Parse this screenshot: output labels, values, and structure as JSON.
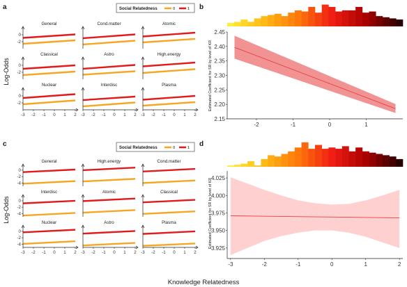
{
  "figure": {
    "xlabel": "Knowledge Relatedness",
    "ylabel_left": "Log-Odds",
    "legend": {
      "title": "Social Relatedness",
      "labels": [
        "0",
        "1"
      ]
    },
    "panel_letters": {
      "a": "a",
      "b": "b",
      "c": "c",
      "d": "d"
    },
    "colors": {
      "sr0": "#F5A623",
      "sr1": "#E31A1C",
      "band": "#F08080",
      "band_light": "#FFC8C8"
    }
  },
  "chart_data": [
    {
      "panel": "a",
      "type": "line",
      "ylabel": "Log-Odds",
      "x_ticks": [
        -3,
        -2,
        -1,
        0,
        1,
        2
      ],
      "y_ticks": [
        0,
        -2
      ],
      "y_tick_labels": [
        "0",
        "-2"
      ],
      "ylim": [
        -4,
        2
      ],
      "series_names": [
        "0",
        "1"
      ],
      "facets": [
        {
          "name": "General",
          "sr0": [
            -2.6,
            -1.6
          ],
          "sr1": [
            -0.9,
            0.1
          ]
        },
        {
          "name": "Cond.matter",
          "sr0": [
            -2.8,
            -1.7
          ],
          "sr1": [
            -1.0,
            0.1
          ]
        },
        {
          "name": "Atomic",
          "sr0": [
            -2.2,
            -1.2
          ],
          "sr1": [
            -0.5,
            0.6
          ]
        },
        {
          "name": "Classical",
          "sr0": [
            -2.8,
            -1.8
          ],
          "sr1": [
            -1.0,
            0.0
          ]
        },
        {
          "name": "Astro",
          "sr0": [
            -2.7,
            -1.7
          ],
          "sr1": [
            -1.0,
            0.1
          ]
        },
        {
          "name": "High.energy",
          "sr0": [
            -2.2,
            -1.1
          ],
          "sr1": [
            -0.3,
            0.8
          ]
        },
        {
          "name": "Nuclear",
          "sr0": [
            -2.4,
            -1.3
          ],
          "sr1": [
            -0.6,
            0.5
          ]
        },
        {
          "name": "Interdisc",
          "sr0": [
            -3.0,
            -1.9
          ],
          "sr1": [
            -1.2,
            -0.2
          ]
        },
        {
          "name": "Plasma",
          "sr0": [
            -2.8,
            -1.8
          ],
          "sr1": [
            -1.1,
            0.0
          ]
        }
      ]
    },
    {
      "panel": "b",
      "type": "line",
      "ylabel": "Estimated Coefficient for SR by level of KR",
      "x": [
        -2.6,
        1.8
      ],
      "y": [
        2.397,
        2.185
      ],
      "ci_lower": [
        2.358,
        2.17
      ],
      "ci_upper": [
        2.437,
        2.201
      ],
      "xlim": [
        -2.8,
        2.0
      ],
      "ylim": [
        2.15,
        2.45
      ],
      "x_ticks": [
        -2,
        -1,
        0,
        1
      ],
      "y_ticks": [
        2.15,
        2.2,
        2.25,
        2.3,
        2.35,
        2.4,
        2.45
      ],
      "y_tick_labels": [
        "2.15",
        "2.20",
        "2.25",
        "2.30",
        "2.35",
        "2.40",
        "2.45"
      ],
      "histogram": [
        0.15,
        0.2,
        0.3,
        0.2,
        0.35,
        0.45,
        0.5,
        0.55,
        0.45,
        0.6,
        0.7,
        0.65,
        0.85,
        0.6,
        0.95,
        0.85,
        0.65,
        0.7,
        0.7,
        0.85,
        0.6,
        0.65,
        0.45,
        0.4,
        0.35,
        0.3
      ]
    },
    {
      "panel": "c",
      "type": "line",
      "ylabel": "Log-Odds",
      "x_ticks": [
        -3,
        -2,
        -1,
        0,
        1,
        2
      ],
      "y_ticks": [
        0,
        -2,
        -4
      ],
      "y_tick_labels": [
        "0",
        "-2",
        "-4"
      ],
      "ylim": [
        -5,
        1.5
      ],
      "series_names": [
        "0",
        "1"
      ],
      "facets": [
        {
          "name": "General",
          "sr0": [
            -4.2,
            -3.4
          ],
          "sr1": [
            -0.6,
            0.2
          ]
        },
        {
          "name": "High.energy",
          "sr0": [
            -3.5,
            -2.7
          ],
          "sr1": [
            0.0,
            0.8
          ]
        },
        {
          "name": "Cond.matter",
          "sr0": [
            -4.0,
            -3.2
          ],
          "sr1": [
            -0.4,
            0.4
          ]
        },
        {
          "name": "Interdisc",
          "sr0": [
            -4.6,
            -3.8
          ],
          "sr1": [
            -0.8,
            0.0
          ]
        },
        {
          "name": "Atomic",
          "sr0": [
            -3.7,
            -2.9
          ],
          "sr1": [
            -0.1,
            0.7
          ]
        },
        {
          "name": "Classical",
          "sr0": [
            -4.1,
            -3.3
          ],
          "sr1": [
            -0.5,
            0.3
          ]
        },
        {
          "name": "Nuclear",
          "sr0": [
            -3.9,
            -3.1
          ],
          "sr1": [
            -0.3,
            0.5
          ]
        },
        {
          "name": "Astro",
          "sr0": [
            -4.4,
            -3.6
          ],
          "sr1": [
            -0.7,
            0.1
          ]
        },
        {
          "name": "Plasma",
          "sr0": [
            -4.5,
            -3.8
          ],
          "sr1": [
            -0.8,
            0.0
          ]
        }
      ]
    },
    {
      "panel": "d",
      "type": "line",
      "ylabel": "Estimated Coefficient for SR by level of KR",
      "x": [
        -3.0,
        2.0
      ],
      "y": [
        3.971,
        3.968
      ],
      "ci_band": {
        "x": [
          -3.0,
          -2.5,
          -2.0,
          -1.5,
          -1.0,
          -0.5,
          0.0,
          0.5,
          1.0,
          1.5,
          2.0
        ],
        "lower": [
          3.915,
          3.925,
          3.935,
          3.942,
          3.947,
          3.95,
          3.95,
          3.947,
          3.941,
          3.933,
          3.925
        ],
        "upper": [
          4.026,
          4.017,
          4.008,
          4.0,
          3.993,
          3.989,
          3.987,
          3.988,
          3.993,
          4.0,
          4.008
        ]
      },
      "xlim": [
        -3.1,
        2.1
      ],
      "ylim": [
        3.91,
        4.035
      ],
      "x_ticks": [
        -3,
        -2,
        -1,
        0,
        1,
        2
      ],
      "y_ticks": [
        3.925,
        3.95,
        3.975,
        4.0,
        4.025
      ],
      "y_tick_labels": [
        "3.925",
        "3.950",
        "3.975",
        "4.000",
        "4.025"
      ],
      "histogram": [
        0.05,
        0.08,
        0.12,
        0.22,
        0.05,
        0.3,
        0.45,
        0.4,
        0.5,
        0.6,
        0.75,
        0.95,
        0.7,
        0.85,
        0.7,
        0.75,
        0.7,
        0.8,
        0.6,
        0.75,
        0.6,
        0.55,
        0.5,
        0.45,
        0.4,
        0.3
      ]
    }
  ]
}
